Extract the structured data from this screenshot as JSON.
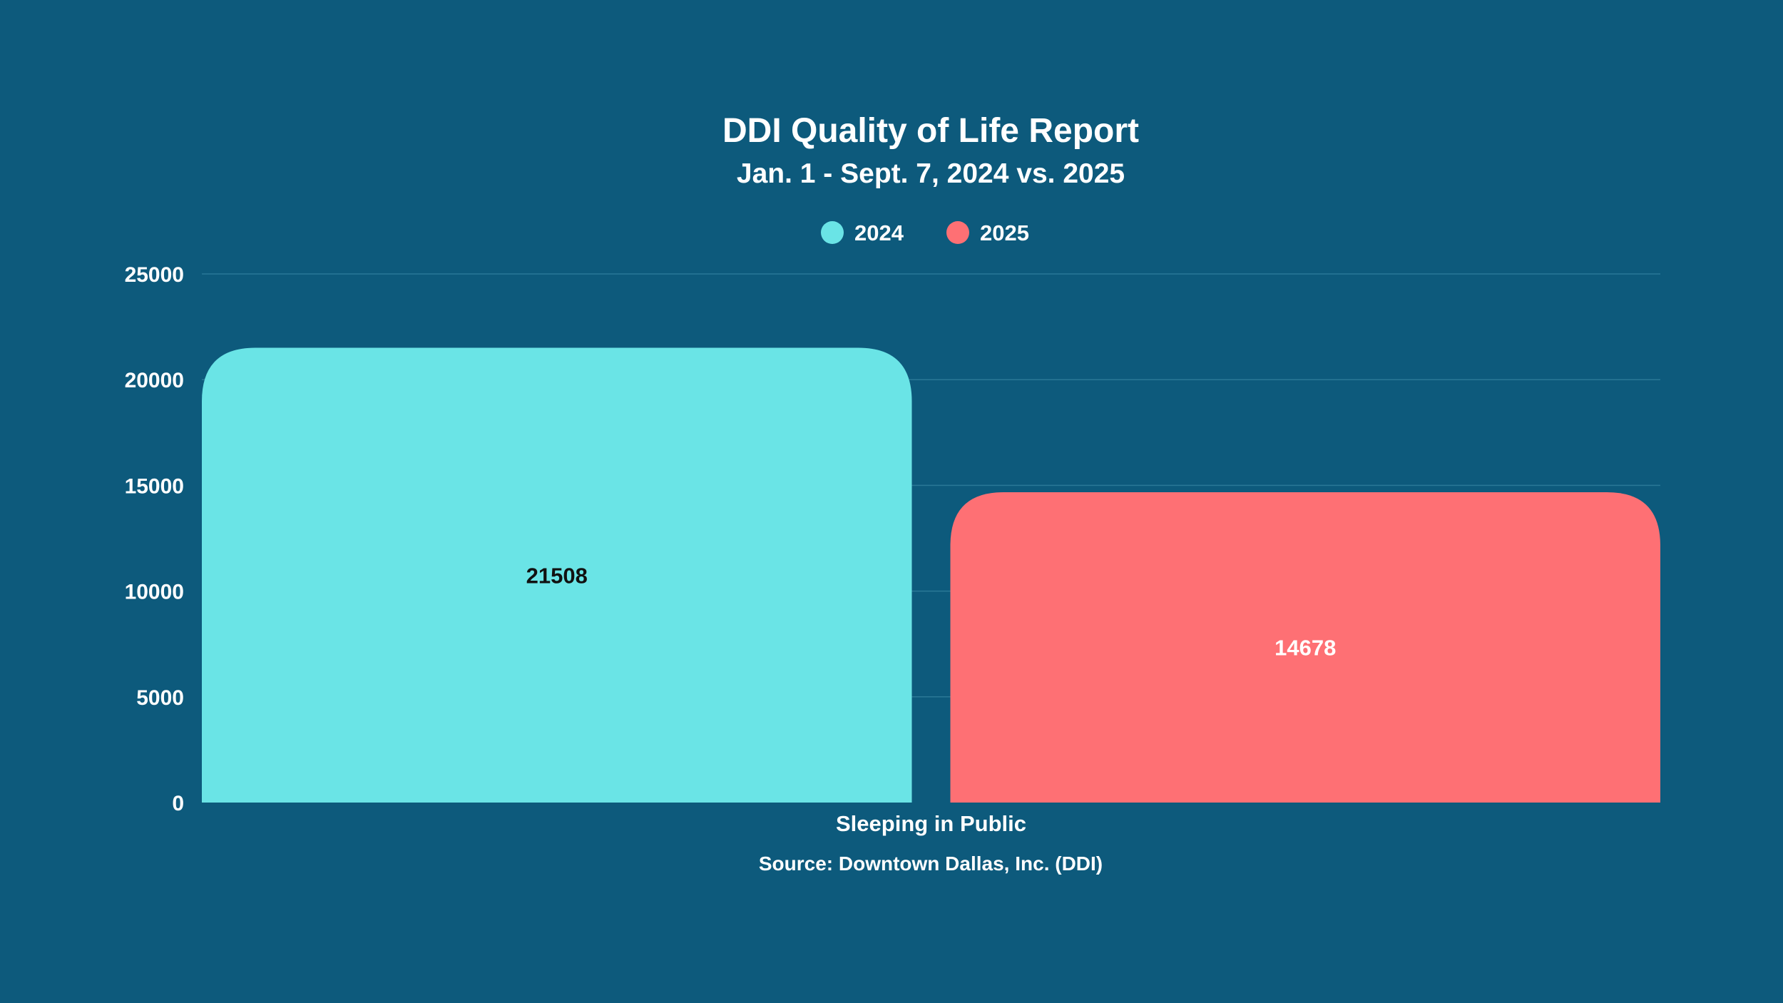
{
  "chart_data": {
    "type": "bar",
    "title": "DDI Quality of Life Report",
    "subtitle": "Jan. 1 - Sept. 7, 2024 vs. 2025",
    "categories": [
      "Sleeping in Public"
    ],
    "series": [
      {
        "name": "2024",
        "values": [
          21508
        ],
        "color": "#6ae4e6",
        "label_color": "#111111"
      },
      {
        "name": "2025",
        "values": [
          14678
        ],
        "color": "#fe7074",
        "label_color": "#ffffff"
      }
    ],
    "ylim": [
      0,
      25000
    ],
    "yticks": [
      0,
      5000,
      10000,
      15000,
      20000,
      25000
    ],
    "grid": true,
    "legend_position": "top-center",
    "source": "Source: Downtown Dallas, Inc. (DDI)",
    "colors": {
      "background": "#0d5a7c",
      "gridline": "#2a7896"
    }
  }
}
